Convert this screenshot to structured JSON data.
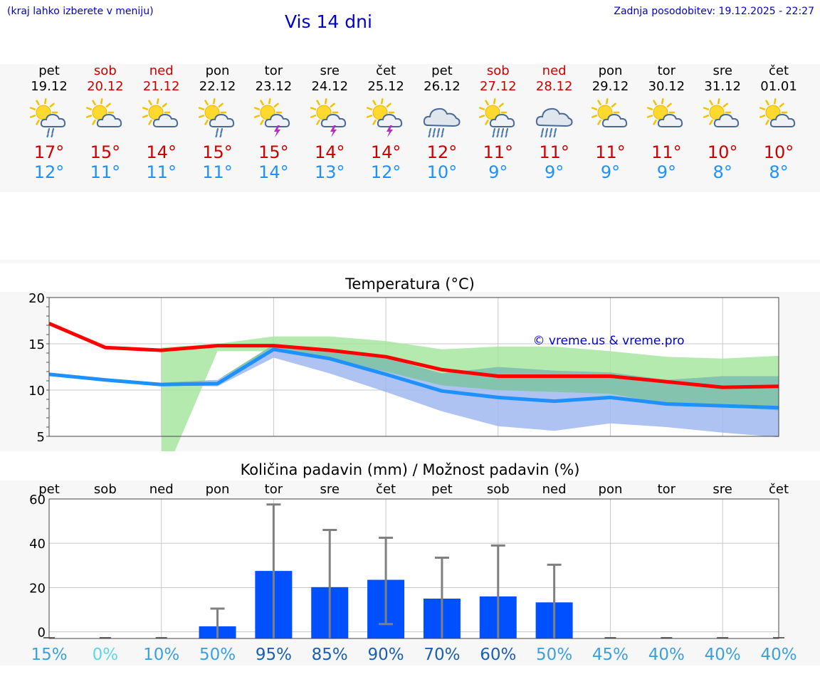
{
  "header": {
    "hint": "(kraj lahko izberete v meniju)",
    "title": "Vis 14 dni",
    "updated": "Zadnja posodobitev: 19.12.2025 - 22:27"
  },
  "forecast": [
    {
      "day": "pet",
      "date": "19.12",
      "weekend": false,
      "icon": "sun-cloud-light-rain-icon",
      "max": "17°",
      "min": "12°"
    },
    {
      "day": "sob",
      "date": "20.12",
      "weekend": true,
      "icon": "sun-cloud-icon",
      "max": "15°",
      "min": "11°"
    },
    {
      "day": "ned",
      "date": "21.12",
      "weekend": true,
      "icon": "sun-cloud-icon",
      "max": "14°",
      "min": "11°"
    },
    {
      "day": "pon",
      "date": "22.12",
      "weekend": false,
      "icon": "sun-cloud-light-rain-icon",
      "max": "15°",
      "min": "11°"
    },
    {
      "day": "tor",
      "date": "23.12",
      "weekend": false,
      "icon": "sun-cloud-thunder-icon",
      "max": "15°",
      "min": "14°"
    },
    {
      "day": "sre",
      "date": "24.12",
      "weekend": false,
      "icon": "sun-cloud-thunder-icon",
      "max": "14°",
      "min": "13°"
    },
    {
      "day": "čet",
      "date": "25.12",
      "weekend": false,
      "icon": "sun-cloud-thunder-icon",
      "max": "14°",
      "min": "12°"
    },
    {
      "day": "pet",
      "date": "26.12",
      "weekend": false,
      "icon": "cloud-rain-icon",
      "max": "12°",
      "min": "10°"
    },
    {
      "day": "sob",
      "date": "27.12",
      "weekend": true,
      "icon": "sun-cloud-rain-icon",
      "max": "11°",
      "min": "9°"
    },
    {
      "day": "ned",
      "date": "28.12",
      "weekend": true,
      "icon": "cloud-rain-icon",
      "max": "11°",
      "min": "9°"
    },
    {
      "day": "pon",
      "date": "29.12",
      "weekend": false,
      "icon": "sun-cloud-icon",
      "max": "11°",
      "min": "9°"
    },
    {
      "day": "tor",
      "date": "30.12",
      "weekend": false,
      "icon": "sun-cloud-icon",
      "max": "11°",
      "min": "9°"
    },
    {
      "day": "sre",
      "date": "31.12",
      "weekend": false,
      "icon": "sun-cloud-icon",
      "max": "10°",
      "min": "8°"
    },
    {
      "day": "čet",
      "date": "01.01",
      "weekend": false,
      "icon": "sun-cloud-icon",
      "max": "10°",
      "min": "8°"
    }
  ],
  "chart_data": [
    {
      "type": "line",
      "title": "Temperatura (°C)",
      "watermark": "© vreme.us & vreme.pro",
      "ylim": [
        5,
        20
      ],
      "yticks": [
        5,
        10,
        15,
        20
      ],
      "grid": true,
      "colors": {
        "max": "#ff0000",
        "min": "#1e90ff",
        "band_max": "#a8e6a0",
        "band_min": "#a0b8f0",
        "band_overlap": "#7cc4a0"
      },
      "series": [
        {
          "name": "max",
          "values": [
            17.2,
            14.6,
            14.3,
            14.8,
            14.8,
            14.3,
            13.6,
            12.2,
            11.5,
            11.5,
            11.5,
            10.9,
            10.3,
            10.4
          ]
        },
        {
          "name": "min",
          "values": [
            11.7,
            11.1,
            10.6,
            10.7,
            14.4,
            13.4,
            11.7,
            9.9,
            9.2,
            8.8,
            9.2,
            8.5,
            8.3,
            8.1
          ]
        }
      ],
      "band_max": {
        "lower": [
          null,
          null,
          null,
          14.2,
          14.2,
          13.2,
          12.0,
          10.5,
          10.0,
          9.8,
          9.6,
          8.5,
          8.2,
          7.8
        ],
        "upper": [
          null,
          null,
          14.6,
          15.0,
          15.8,
          15.8,
          15.3,
          14.4,
          14.7,
          14.7,
          14.2,
          13.6,
          13.4,
          13.7
        ]
      },
      "band_min": {
        "lower": [
          null,
          null,
          10.5,
          10.4,
          13.5,
          11.8,
          9.8,
          7.7,
          6.1,
          5.6,
          6.4,
          6.0,
          5.4,
          4.9
        ],
        "upper": [
          null,
          null,
          10.8,
          11.1,
          14.9,
          14.5,
          13.5,
          11.8,
          12.5,
          12.1,
          11.9,
          11.1,
          11.5,
          11.5
        ]
      }
    },
    {
      "type": "bar",
      "title": "Količina padavin (mm) / Možnost padavin (%)",
      "categories": [
        "pet",
        "sob",
        "ned",
        "pon",
        "tor",
        "sre",
        "čet",
        "pet",
        "sob",
        "ned",
        "pon",
        "tor",
        "sre",
        "čet"
      ],
      "ylim": [
        -3,
        60
      ],
      "yticks": [
        0,
        20,
        40,
        60
      ],
      "bar_color": "#0050ff",
      "values": [
        0,
        0,
        0,
        2.5,
        27.5,
        20.2,
        23.5,
        15,
        16,
        13.3,
        0,
        0,
        0,
        0
      ],
      "error_high": [
        0,
        0,
        0,
        10.5,
        57.5,
        46,
        42.5,
        33.5,
        39,
        30.3,
        0,
        0,
        0,
        0
      ],
      "error_low": [
        0,
        0,
        0,
        0,
        0,
        0,
        3.5,
        0,
        0,
        0,
        0,
        0,
        0,
        0
      ],
      "probability": [
        "15%",
        "0%",
        "10%",
        "50%",
        "95%",
        "85%",
        "90%",
        "70%",
        "60%",
        "50%",
        "45%",
        "40%",
        "40%",
        "40%"
      ],
      "probability_colors": [
        "#3ba0e0",
        "#5ad8ea",
        "#3ba0e0",
        "#3ba0e0",
        "#1a5fb4",
        "#1a5fb4",
        "#1a5fb4",
        "#1a5fb4",
        "#1a5fb4",
        "#3ba0e0",
        "#3ba0e0",
        "#3ba0e0",
        "#3ba0e0",
        "#3ba0e0"
      ]
    }
  ]
}
